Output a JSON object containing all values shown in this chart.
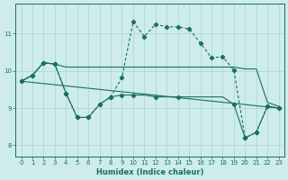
{
  "xlabel": "Humidex (Indice chaleur)",
  "background_color": "#ceecea",
  "grid_color": "#aad4d0",
  "line_color": "#1a6e65",
  "xlim": [
    -0.5,
    23.5
  ],
  "ylim": [
    7.7,
    11.8
  ],
  "yticks": [
    8,
    9,
    10,
    11
  ],
  "xticks": [
    0,
    1,
    2,
    3,
    4,
    5,
    6,
    7,
    8,
    9,
    10,
    11,
    12,
    13,
    14,
    15,
    16,
    17,
    18,
    19,
    20,
    21,
    22,
    23
  ],
  "line1_x": [
    0,
    1,
    2,
    3,
    4,
    5,
    6,
    7,
    8,
    9,
    10,
    11,
    12,
    13,
    14,
    15,
    16,
    17,
    18,
    19,
    20,
    21,
    22,
    23
  ],
  "line1_y": [
    9.72,
    9.88,
    10.22,
    10.18,
    10.1,
    10.1,
    10.1,
    10.1,
    10.1,
    10.1,
    10.1,
    10.1,
    10.1,
    10.1,
    10.1,
    10.1,
    10.1,
    10.1,
    10.1,
    10.1,
    10.05,
    10.05,
    9.15,
    9.05
  ],
  "line2_x": [
    0,
    1,
    2,
    3,
    4,
    5,
    6,
    7,
    8,
    9,
    10,
    11,
    12,
    13,
    14,
    15,
    16,
    17,
    18,
    19,
    20,
    21,
    22,
    23
  ],
  "line2_y": [
    9.72,
    9.88,
    10.22,
    10.18,
    9.4,
    8.75,
    8.75,
    9.1,
    9.3,
    9.35,
    9.35,
    9.35,
    9.3,
    9.3,
    9.3,
    9.3,
    9.3,
    9.3,
    9.3,
    9.1,
    8.2,
    8.35,
    9.05,
    9.0
  ],
  "line2_marker_x": [
    0,
    1,
    2,
    3,
    4,
    5,
    6,
    7,
    8,
    9,
    10,
    12,
    14,
    19,
    20,
    21,
    22,
    23
  ],
  "line2_marker_y": [
    9.72,
    9.88,
    10.22,
    10.18,
    9.4,
    8.75,
    8.75,
    9.1,
    9.3,
    9.35,
    9.35,
    9.3,
    9.3,
    9.1,
    8.2,
    8.35,
    9.05,
    9.0
  ],
  "line3_x": [
    0,
    1,
    2,
    3,
    4,
    5,
    6,
    7,
    8,
    9,
    10,
    11,
    12,
    13,
    14,
    15,
    16,
    17,
    18,
    19,
    20,
    21,
    22,
    23
  ],
  "line3_y": [
    9.72,
    9.88,
    10.22,
    10.18,
    9.4,
    8.75,
    8.75,
    9.1,
    9.3,
    9.82,
    11.32,
    10.92,
    11.25,
    11.18,
    11.18,
    11.12,
    10.75,
    10.35,
    10.38,
    10.02,
    8.2,
    8.35,
    9.05,
    9.0
  ],
  "line3_marker_x": [
    0,
    1,
    2,
    3,
    4,
    5,
    6,
    7,
    8,
    9,
    10,
    11,
    12,
    13,
    14,
    15,
    16,
    17,
    18,
    19,
    20,
    21,
    22,
    23
  ],
  "line3_marker_y": [
    9.72,
    9.88,
    10.22,
    10.18,
    9.4,
    8.75,
    8.75,
    9.1,
    9.3,
    9.82,
    11.32,
    10.92,
    11.25,
    11.18,
    11.18,
    11.12,
    10.75,
    10.35,
    10.38,
    10.02,
    8.2,
    8.35,
    9.05,
    9.0
  ],
  "line4_x": [
    0,
    23
  ],
  "line4_y": [
    9.72,
    9.0
  ]
}
